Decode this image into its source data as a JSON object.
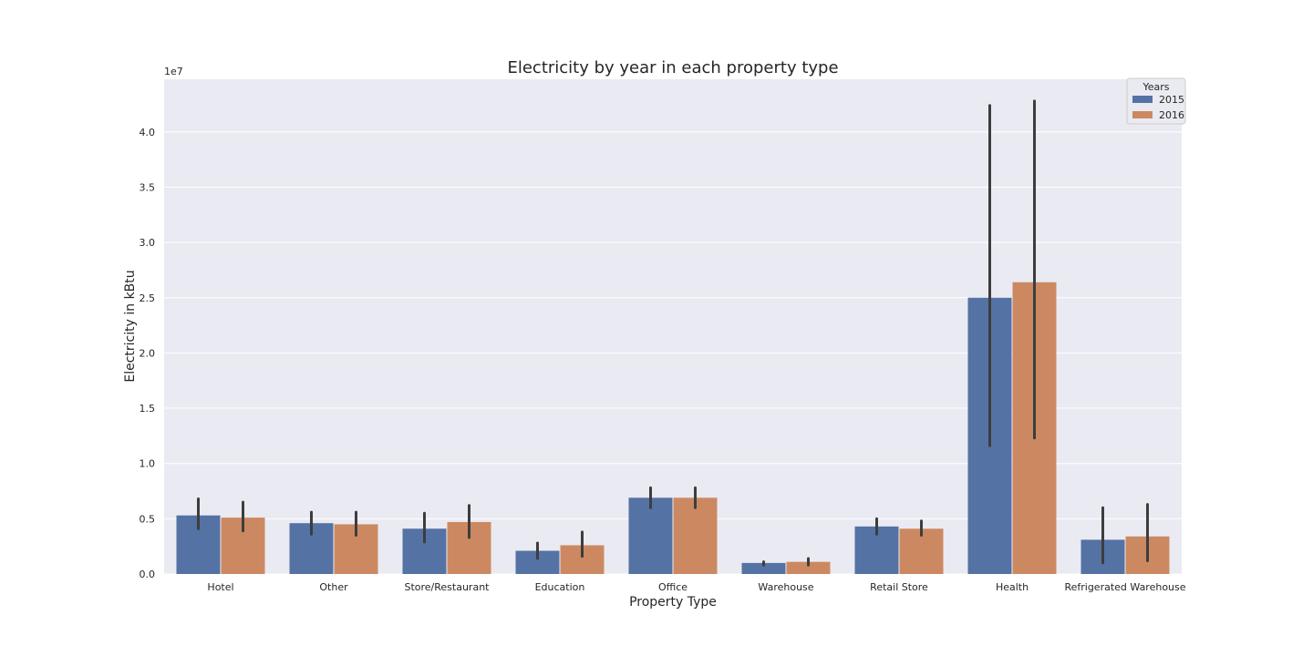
{
  "chart_data": {
    "type": "bar",
    "title": "Electricity by year in each property type",
    "xlabel": "Property Type",
    "ylabel": "Electricity in kBtu",
    "scale_label": "1e7",
    "ylim": [
      0,
      4.5
    ],
    "yticks": [
      "0.0",
      "0.5",
      "1.0",
      "1.5",
      "2.0",
      "2.5",
      "3.0",
      "3.5",
      "4.0"
    ],
    "grid": true,
    "legend_position": "top-right",
    "legend_title": "Years",
    "categories": [
      "Hotel",
      "Other",
      "Store/Restaurant",
      "Education",
      "Office",
      "Warehouse",
      "Retail Store",
      "Health",
      "Refrigerated Warehouse"
    ],
    "series": [
      {
        "name": "2015",
        "color": "#5572a4",
        "values": [
          0.53,
          0.46,
          0.41,
          0.21,
          0.69,
          0.1,
          0.43,
          2.5,
          0.31
        ],
        "ci_low": [
          0.41,
          0.36,
          0.29,
          0.14,
          0.6,
          0.08,
          0.36,
          1.16,
          0.1
        ],
        "ci_high": [
          0.68,
          0.56,
          0.55,
          0.28,
          0.78,
          0.11,
          0.5,
          4.24,
          0.6
        ]
      },
      {
        "name": "2016",
        "color": "#cc8961",
        "values": [
          0.51,
          0.45,
          0.47,
          0.26,
          0.69,
          0.11,
          0.41,
          2.64,
          0.34
        ],
        "ci_low": [
          0.39,
          0.35,
          0.33,
          0.16,
          0.6,
          0.08,
          0.35,
          1.23,
          0.12
        ],
        "ci_high": [
          0.65,
          0.56,
          0.62,
          0.38,
          0.78,
          0.14,
          0.48,
          4.28,
          0.63
        ]
      }
    ]
  }
}
